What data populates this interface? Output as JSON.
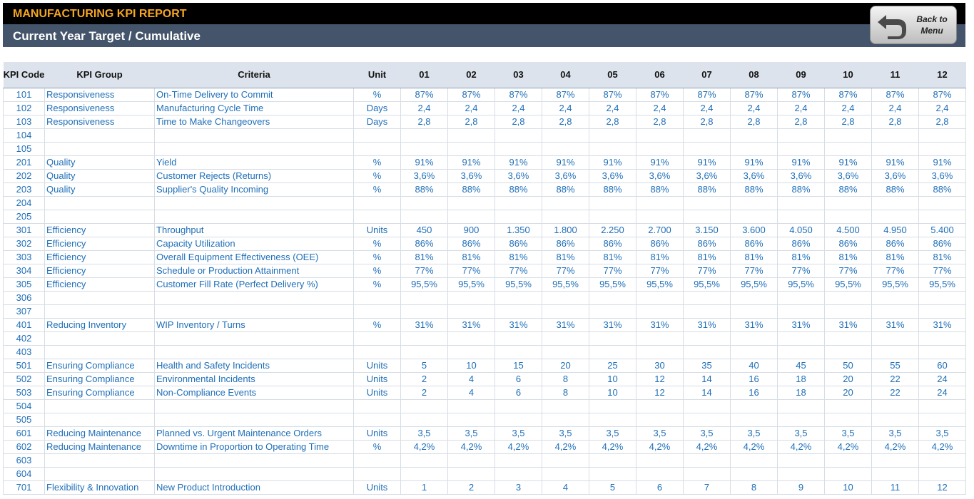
{
  "header": {
    "title": "MANUFACTURING KPI REPORT",
    "subtitle": "Current Year Target / Cumulative",
    "button": {
      "line1": "Back to",
      "line2": "Menu"
    }
  },
  "table": {
    "columns": [
      "KPI Code",
      "KPI Group",
      "Criteria",
      "Unit",
      "01",
      "02",
      "03",
      "04",
      "05",
      "06",
      "07",
      "08",
      "09",
      "10",
      "11",
      "12"
    ],
    "rows": [
      {
        "code": "101",
        "group": "Responsiveness",
        "criteria": "On-Time Delivery to Commit",
        "unit": "%",
        "values": [
          "87%",
          "87%",
          "87%",
          "87%",
          "87%",
          "87%",
          "87%",
          "87%",
          "87%",
          "87%",
          "87%",
          "87%"
        ]
      },
      {
        "code": "102",
        "group": "Responsiveness",
        "criteria": "Manufacturing Cycle Time",
        "unit": "Days",
        "values": [
          "2,4",
          "2,4",
          "2,4",
          "2,4",
          "2,4",
          "2,4",
          "2,4",
          "2,4",
          "2,4",
          "2,4",
          "2,4",
          "2,4"
        ]
      },
      {
        "code": "103",
        "group": "Responsiveness",
        "criteria": "Time to Make Changeovers",
        "unit": "Days",
        "values": [
          "2,8",
          "2,8",
          "2,8",
          "2,8",
          "2,8",
          "2,8",
          "2,8",
          "2,8",
          "2,8",
          "2,8",
          "2,8",
          "2,8"
        ]
      },
      {
        "code": "104"
      },
      {
        "code": "105"
      },
      {
        "code": "201",
        "group": "Quality",
        "criteria": "Yield",
        "unit": "%",
        "values": [
          "91%",
          "91%",
          "91%",
          "91%",
          "91%",
          "91%",
          "91%",
          "91%",
          "91%",
          "91%",
          "91%",
          "91%"
        ]
      },
      {
        "code": "202",
        "group": "Quality",
        "criteria": "Customer Rejects (Returns)",
        "unit": "%",
        "values": [
          "3,6%",
          "3,6%",
          "3,6%",
          "3,6%",
          "3,6%",
          "3,6%",
          "3,6%",
          "3,6%",
          "3,6%",
          "3,6%",
          "3,6%",
          "3,6%"
        ]
      },
      {
        "code": "203",
        "group": "Quality",
        "criteria": "Supplier's Quality Incoming",
        "unit": "%",
        "values": [
          "88%",
          "88%",
          "88%",
          "88%",
          "88%",
          "88%",
          "88%",
          "88%",
          "88%",
          "88%",
          "88%",
          "88%"
        ]
      },
      {
        "code": "204"
      },
      {
        "code": "205"
      },
      {
        "code": "301",
        "group": "Efficiency",
        "criteria": "Throughput",
        "unit": "Units",
        "values": [
          "450",
          "900",
          "1.350",
          "1.800",
          "2.250",
          "2.700",
          "3.150",
          "3.600",
          "4.050",
          "4.500",
          "4.950",
          "5.400"
        ]
      },
      {
        "code": "302",
        "group": "Efficiency",
        "criteria": "Capacity Utilization",
        "unit": "%",
        "values": [
          "86%",
          "86%",
          "86%",
          "86%",
          "86%",
          "86%",
          "86%",
          "86%",
          "86%",
          "86%",
          "86%",
          "86%"
        ]
      },
      {
        "code": "303",
        "group": "Efficiency",
        "criteria": "Overall Equipment Effectiveness (OEE)",
        "unit": "%",
        "values": [
          "81%",
          "81%",
          "81%",
          "81%",
          "81%",
          "81%",
          "81%",
          "81%",
          "81%",
          "81%",
          "81%",
          "81%"
        ]
      },
      {
        "code": "304",
        "group": "Efficiency",
        "criteria": "Schedule or Production Attainment",
        "unit": "%",
        "values": [
          "77%",
          "77%",
          "77%",
          "77%",
          "77%",
          "77%",
          "77%",
          "77%",
          "77%",
          "77%",
          "77%",
          "77%"
        ]
      },
      {
        "code": "305",
        "group": "Efficiency",
        "criteria": "Customer Fill Rate (Perfect Delivery %)",
        "unit": "%",
        "values": [
          "95,5%",
          "95,5%",
          "95,5%",
          "95,5%",
          "95,5%",
          "95,5%",
          "95,5%",
          "95,5%",
          "95,5%",
          "95,5%",
          "95,5%",
          "95,5%"
        ]
      },
      {
        "code": "306"
      },
      {
        "code": "307"
      },
      {
        "code": "401",
        "group": "Reducing Inventory",
        "criteria": "WIP Inventory / Turns",
        "unit": "%",
        "values": [
          "31%",
          "31%",
          "31%",
          "31%",
          "31%",
          "31%",
          "31%",
          "31%",
          "31%",
          "31%",
          "31%",
          "31%"
        ]
      },
      {
        "code": "402"
      },
      {
        "code": "403"
      },
      {
        "code": "501",
        "group": "Ensuring Compliance",
        "criteria": "Health and Safety Incidents",
        "unit": "Units",
        "values": [
          "5",
          "10",
          "15",
          "20",
          "25",
          "30",
          "35",
          "40",
          "45",
          "50",
          "55",
          "60"
        ]
      },
      {
        "code": "502",
        "group": "Ensuring Compliance",
        "criteria": "Environmental Incidents",
        "unit": "Units",
        "values": [
          "2",
          "4",
          "6",
          "8",
          "10",
          "12",
          "14",
          "16",
          "18",
          "20",
          "22",
          "24"
        ]
      },
      {
        "code": "503",
        "group": "Ensuring Compliance",
        "criteria": "Non-Compliance Events",
        "unit": "Units",
        "values": [
          "2",
          "4",
          "6",
          "8",
          "10",
          "12",
          "14",
          "16",
          "18",
          "20",
          "22",
          "24"
        ]
      },
      {
        "code": "504"
      },
      {
        "code": "505"
      },
      {
        "code": "601",
        "group": "Reducing Maintenance",
        "criteria": "Planned vs. Urgent Maintenance Orders",
        "unit": "Units",
        "values": [
          "3,5",
          "3,5",
          "3,5",
          "3,5",
          "3,5",
          "3,5",
          "3,5",
          "3,5",
          "3,5",
          "3,5",
          "3,5",
          "3,5"
        ]
      },
      {
        "code": "602",
        "group": "Reducing Maintenance",
        "criteria": "Downtime in Proportion to Operating Time",
        "unit": "%",
        "values": [
          "4,2%",
          "4,2%",
          "4,2%",
          "4,2%",
          "4,2%",
          "4,2%",
          "4,2%",
          "4,2%",
          "4,2%",
          "4,2%",
          "4,2%",
          "4,2%"
        ]
      },
      {
        "code": "603"
      },
      {
        "code": "604"
      },
      {
        "code": "701",
        "group": "Flexibility & Innovation",
        "criteria": "New Product Introduction",
        "unit": "Units",
        "values": [
          "1",
          "2",
          "3",
          "4",
          "5",
          "6",
          "7",
          "8",
          "9",
          "10",
          "11",
          "12"
        ]
      }
    ]
  }
}
